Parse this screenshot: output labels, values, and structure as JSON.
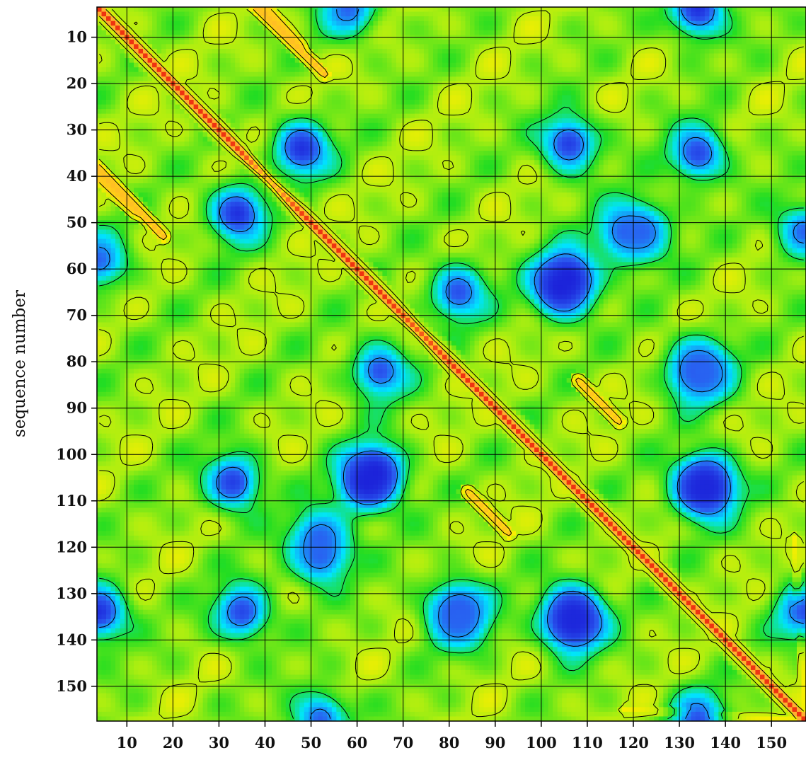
{
  "chart_data": {
    "type": "heatmap",
    "title": "",
    "xlabel": "",
    "ylabel": "sequence number",
    "xlim": [
      3.5,
      157.5
    ],
    "ylim": [
      3.5,
      157.5
    ],
    "y_inverted": true,
    "x_ticks": [
      10,
      20,
      30,
      40,
      50,
      60,
      70,
      80,
      90,
      100,
      110,
      120,
      130,
      140,
      150
    ],
    "y_ticks": [
      10,
      20,
      30,
      40,
      50,
      60,
      70,
      80,
      90,
      100,
      110,
      120,
      130,
      140,
      150
    ],
    "x_tick_labels": [
      "10",
      "20",
      "30",
      "40",
      "50",
      "60",
      "70",
      "80",
      "90",
      "100",
      "110",
      "120",
      "130",
      "140",
      "150"
    ],
    "y_tick_labels": [
      "10",
      "20",
      "30",
      "40",
      "50",
      "60",
      "70",
      "80",
      "90",
      "100",
      "110",
      "120",
      "130",
      "140",
      "150"
    ],
    "grid": true,
    "contours": true,
    "symmetric": true,
    "colorscale": [
      "#1a1ad6",
      "#2a5cf0",
      "#00e5ff",
      "#22dd22",
      "#aaee11",
      "#ffee00",
      "#ffaa33",
      "#ee3311"
    ],
    "value_range": [
      0,
      1
    ],
    "diagonal_value": 1.0,
    "secondary_diagonals": [
      {
        "from": [
          3.5,
          38
        ],
        "to": [
          18,
          53
        ],
        "value": 0.82
      },
      {
        "from": [
          40,
          3.5
        ],
        "to": [
          48,
          12
        ],
        "value": 0.8
      },
      {
        "from": [
          84,
          108
        ],
        "to": [
          93,
          117
        ],
        "value": 0.8
      },
      {
        "from": [
          118,
          155
        ],
        "to": [
          157.5,
          157.5
        ],
        "value": 0.7
      }
    ],
    "regions": [
      {
        "x": 48,
        "y": 34,
        "value": 0.05
      },
      {
        "x": 34,
        "y": 48,
        "value": 0.05
      },
      {
        "x": 106,
        "y": 33,
        "value": 0.08
      },
      {
        "x": 33,
        "y": 106,
        "value": 0.08
      },
      {
        "x": 104,
        "y": 64,
        "value": 0.02
      },
      {
        "x": 64,
        "y": 104,
        "value": 0.02
      },
      {
        "x": 62,
        "y": 106,
        "value": 0.02
      },
      {
        "x": 106,
        "y": 62,
        "value": 0.02
      },
      {
        "x": 136,
        "y": 107,
        "value": 0.02
      },
      {
        "x": 107,
        "y": 136,
        "value": 0.02
      },
      {
        "x": 107,
        "y": 135,
        "value": 0.03
      },
      {
        "x": 135,
        "y": 107,
        "value": 0.03
      },
      {
        "x": 82,
        "y": 134,
        "value": 0.1
      },
      {
        "x": 134,
        "y": 82,
        "value": 0.1
      },
      {
        "x": 134,
        "y": 35,
        "value": 0.1
      },
      {
        "x": 35,
        "y": 134,
        "value": 0.1
      },
      {
        "x": 65,
        "y": 82,
        "value": 0.12
      },
      {
        "x": 82,
        "y": 65,
        "value": 0.12
      },
      {
        "x": 135,
        "y": 82,
        "value": 0.15
      },
      {
        "x": 82,
        "y": 135,
        "value": 0.15
      },
      {
        "x": 52,
        "y": 122,
        "value": 0.15
      },
      {
        "x": 122,
        "y": 52,
        "value": 0.15
      },
      {
        "x": 118,
        "y": 52,
        "value": 0.15
      },
      {
        "x": 52,
        "y": 118,
        "value": 0.15
      },
      {
        "x": 4,
        "y": 134,
        "value": 0.05
      },
      {
        "x": 134,
        "y": 4,
        "value": 0.05
      },
      {
        "x": 157,
        "y": 134,
        "value": 0.12
      },
      {
        "x": 134,
        "y": 157,
        "value": 0.12
      },
      {
        "x": 4,
        "y": 58,
        "value": 0.15
      },
      {
        "x": 58,
        "y": 4,
        "value": 0.15
      },
      {
        "x": 157,
        "y": 52,
        "value": 0.15
      },
      {
        "x": 52,
        "y": 157,
        "value": 0.15
      }
    ]
  }
}
